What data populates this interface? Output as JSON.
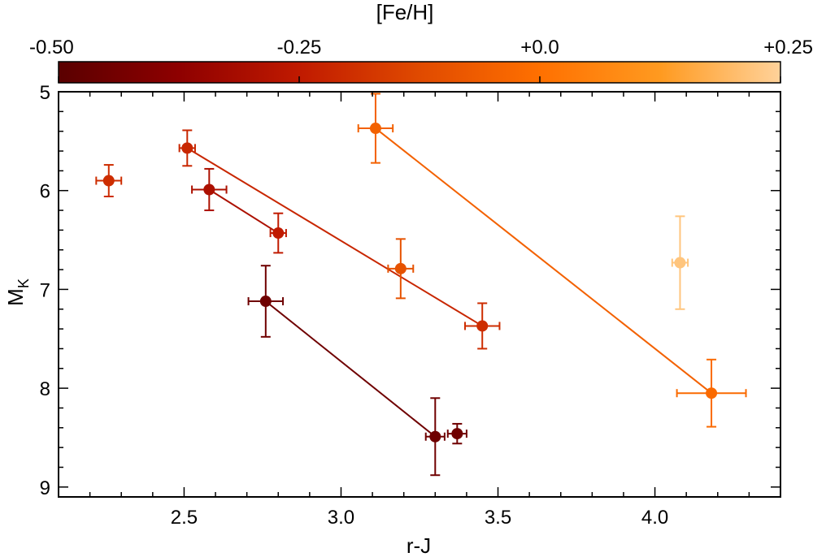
{
  "chart_data": {
    "type": "scatter",
    "title": "",
    "xlabel": "r-J",
    "ylabel": "M",
    "ylabel_subscript": "K",
    "xlim": [
      2.1,
      4.4
    ],
    "ylim": [
      9.1,
      5.0
    ],
    "y_inverted": true,
    "grid": false,
    "xticks": [
      2.5,
      3.0,
      3.5,
      4.0
    ],
    "xtick_labels": [
      "2.5",
      "3.0",
      "3.5",
      "4.0"
    ],
    "yticks": [
      5,
      6,
      7,
      8,
      9
    ],
    "ytick_labels": [
      "5",
      "6",
      "7",
      "8",
      "9"
    ],
    "colorbar": {
      "label": "[Fe/H]",
      "range": [
        -0.5,
        0.25
      ],
      "ticks": [
        -0.5,
        -0.25,
        0.0,
        0.25
      ],
      "tick_labels": [
        "-0.50",
        "-0.25",
        "+0.0",
        "+0.25"
      ],
      "colormap": [
        "#5a0000",
        "#8e0000",
        "#c01a00",
        "#e04a00",
        "#ff7000",
        "#ff9a20",
        "#ffd29a"
      ]
    },
    "points": [
      {
        "x": 2.26,
        "y": 5.9,
        "xerr": 0.04,
        "yerr": 0.16,
        "feh": -0.2
      },
      {
        "x": 2.51,
        "y": 5.57,
        "xerr": 0.025,
        "yerr": 0.18,
        "feh": -0.22
      },
      {
        "x": 2.58,
        "y": 5.99,
        "xerr": 0.055,
        "yerr": 0.21,
        "feh": -0.3
      },
      {
        "x": 2.8,
        "y": 6.43,
        "xerr": 0.025,
        "yerr": 0.2,
        "feh": -0.25
      },
      {
        "x": 2.76,
        "y": 7.12,
        "xerr": 0.055,
        "yerr": 0.36,
        "feh": -0.45
      },
      {
        "x": 3.11,
        "y": 5.37,
        "xerr": 0.055,
        "yerr": 0.35,
        "feh": -0.05
      },
      {
        "x": 3.19,
        "y": 6.79,
        "xerr": 0.04,
        "yerr": 0.3,
        "feh": -0.1
      },
      {
        "x": 3.45,
        "y": 7.37,
        "xerr": 0.055,
        "yerr": 0.23,
        "feh": -0.2
      },
      {
        "x": 3.3,
        "y": 8.49,
        "xerr": 0.03,
        "yerr": 0.39,
        "feh": -0.45
      },
      {
        "x": 3.37,
        "y": 8.46,
        "xerr": 0.03,
        "yerr": 0.1,
        "feh": -0.45
      },
      {
        "x": 4.08,
        "y": 6.73,
        "xerr": 0.025,
        "yerr": 0.47,
        "feh": 0.22
      },
      {
        "x": 4.18,
        "y": 8.05,
        "xerr": 0.11,
        "yerr": 0.34,
        "feh": -0.02
      }
    ],
    "connecting_lines": [
      {
        "from": [
          2.51,
          5.57
        ],
        "to": [
          3.45,
          7.37
        ],
        "feh": -0.22
      },
      {
        "from": [
          2.58,
          5.99
        ],
        "to": [
          2.8,
          6.43
        ],
        "feh": -0.3
      },
      {
        "from": [
          2.76,
          7.12
        ],
        "to": [
          3.3,
          8.49
        ],
        "feh": -0.45
      },
      {
        "from": [
          3.11,
          5.37
        ],
        "to": [
          4.18,
          8.05
        ],
        "feh": -0.05
      }
    ]
  }
}
